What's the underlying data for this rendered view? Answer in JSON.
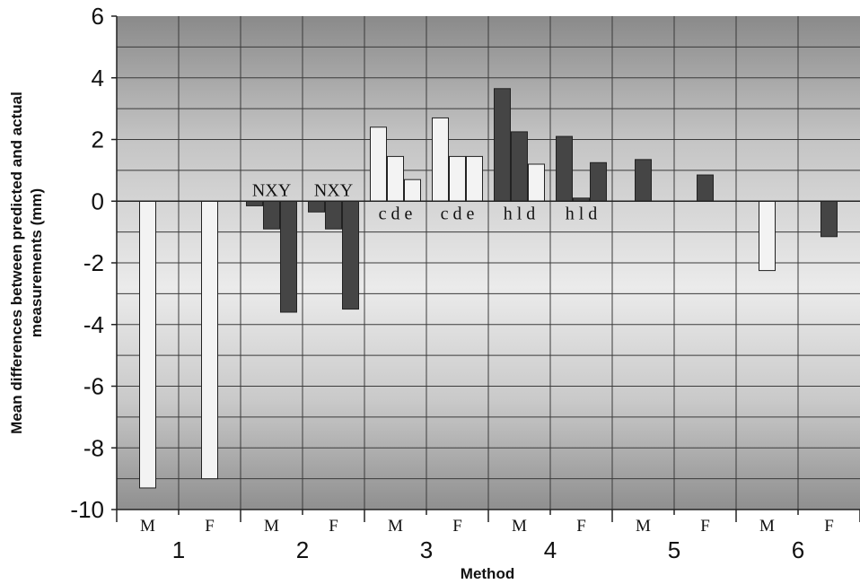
{
  "chart_data": {
    "type": "bar",
    "title": "",
    "xlabel": "Method",
    "ylabel_lines": [
      "Mean differences between predicted and actual",
      "measurements (mm)"
    ],
    "ylim": [
      -10,
      6
    ],
    "yticks": [
      6,
      4,
      2,
      0,
      -2,
      -4,
      -6,
      -8,
      -10
    ],
    "grid": true,
    "legend": "none",
    "colors": {
      "light": "#f3f3f3",
      "dark": "#454545",
      "bar_stroke": "#222222",
      "grid": "#3a3a3a",
      "plot_top": "#8a8a8a",
      "plot_mid": "#e6e6e6",
      "plot_bottom": "#8f8f8f"
    },
    "methods": [
      "1",
      "2",
      "3",
      "4",
      "5",
      "6"
    ],
    "groups": [
      {
        "method": "1",
        "sex": "M",
        "annotation": "",
        "bars": [
          {
            "value": -9.3,
            "shade": "light"
          }
        ]
      },
      {
        "method": "1",
        "sex": "F",
        "annotation": "",
        "bars": [
          {
            "value": -9.0,
            "shade": "light"
          }
        ]
      },
      {
        "method": "2",
        "sex": "M",
        "annotation": "NXY",
        "bars": [
          {
            "value": -0.15,
            "shade": "dark"
          },
          {
            "value": -0.9,
            "shade": "dark"
          },
          {
            "value": -3.6,
            "shade": "dark"
          }
        ]
      },
      {
        "method": "2",
        "sex": "F",
        "annotation": "NXY",
        "bars": [
          {
            "value": -0.35,
            "shade": "dark"
          },
          {
            "value": -0.9,
            "shade": "dark"
          },
          {
            "value": -3.5,
            "shade": "dark"
          }
        ]
      },
      {
        "method": "3",
        "sex": "M",
        "annotation": "c d e",
        "bars": [
          {
            "value": 2.4,
            "shade": "light"
          },
          {
            "value": 1.45,
            "shade": "light"
          },
          {
            "value": 0.7,
            "shade": "light"
          }
        ]
      },
      {
        "method": "3",
        "sex": "F",
        "annotation": "c d e",
        "bars": [
          {
            "value": 2.7,
            "shade": "light"
          },
          {
            "value": 1.45,
            "shade": "light"
          },
          {
            "value": 1.45,
            "shade": "light"
          }
        ]
      },
      {
        "method": "4",
        "sex": "M",
        "annotation": "h l  d",
        "bars": [
          {
            "value": 3.65,
            "shade": "dark"
          },
          {
            "value": 2.25,
            "shade": "dark"
          },
          {
            "value": 1.2,
            "shade": "light"
          }
        ]
      },
      {
        "method": "4",
        "sex": "F",
        "annotation": "h l  d",
        "bars": [
          {
            "value": 2.1,
            "shade": "dark"
          },
          {
            "value": 0.1,
            "shade": "dark"
          },
          {
            "value": 1.25,
            "shade": "dark"
          }
        ]
      },
      {
        "method": "5",
        "sex": "M",
        "annotation": "",
        "bars": [
          {
            "value": 1.35,
            "shade": "dark"
          }
        ]
      },
      {
        "method": "5",
        "sex": "F",
        "annotation": "",
        "bars": [
          {
            "value": 0.85,
            "shade": "dark"
          }
        ]
      },
      {
        "method": "6",
        "sex": "M",
        "annotation": "",
        "bars": [
          {
            "value": -2.25,
            "shade": "light"
          }
        ]
      },
      {
        "method": "6",
        "sex": "F",
        "annotation": "",
        "bars": [
          {
            "value": -1.15,
            "shade": "dark"
          }
        ]
      }
    ]
  }
}
